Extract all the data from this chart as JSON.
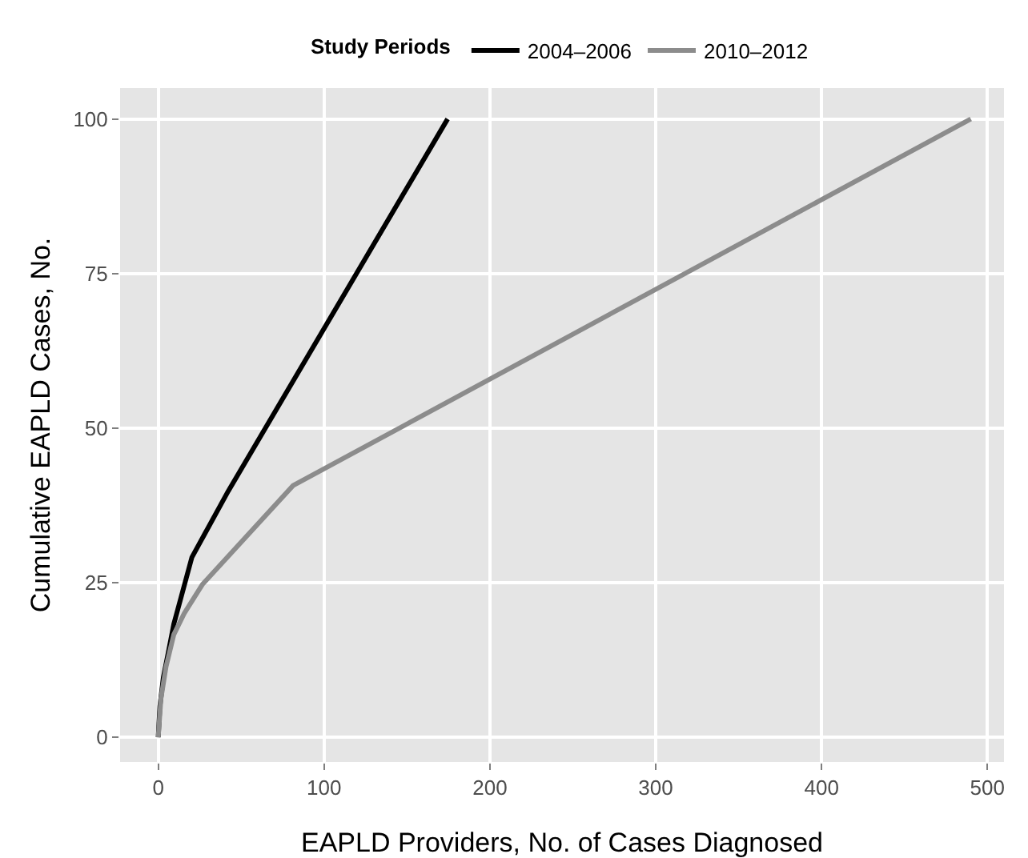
{
  "chart_data": {
    "type": "line",
    "legend_title": "Study Periods",
    "legend": "top",
    "xlabel": "EAPLD Providers, No. of Cases Diagnosed",
    "ylabel": "Cumulative EAPLD Cases, No.",
    "xlim": [
      -23,
      510
    ],
    "ylim": [
      -4,
      105
    ],
    "xticks": [
      0,
      100,
      200,
      300,
      400,
      500
    ],
    "yticks": [
      0,
      25,
      50,
      75,
      100
    ],
    "grid": true,
    "line_style": "solid",
    "marker": "none",
    "series": [
      {
        "name": "2004–2006",
        "color": "#000000",
        "x": [
          0,
          1,
          3.1,
          6.3,
          9.4,
          20.3,
          42.2,
          174.5
        ],
        "values": [
          0,
          5,
          9.7,
          14,
          18.3,
          29.1,
          39.8,
          100
        ]
      },
      {
        "name": "2010–2012",
        "color": "#8c8c8c",
        "x": [
          0,
          1.6,
          4.7,
          9.4,
          15.6,
          26.6,
          81.3,
          490
        ],
        "values": [
          0,
          6.2,
          11.4,
          16.6,
          20,
          24.7,
          40.7,
          100
        ]
      }
    ]
  }
}
